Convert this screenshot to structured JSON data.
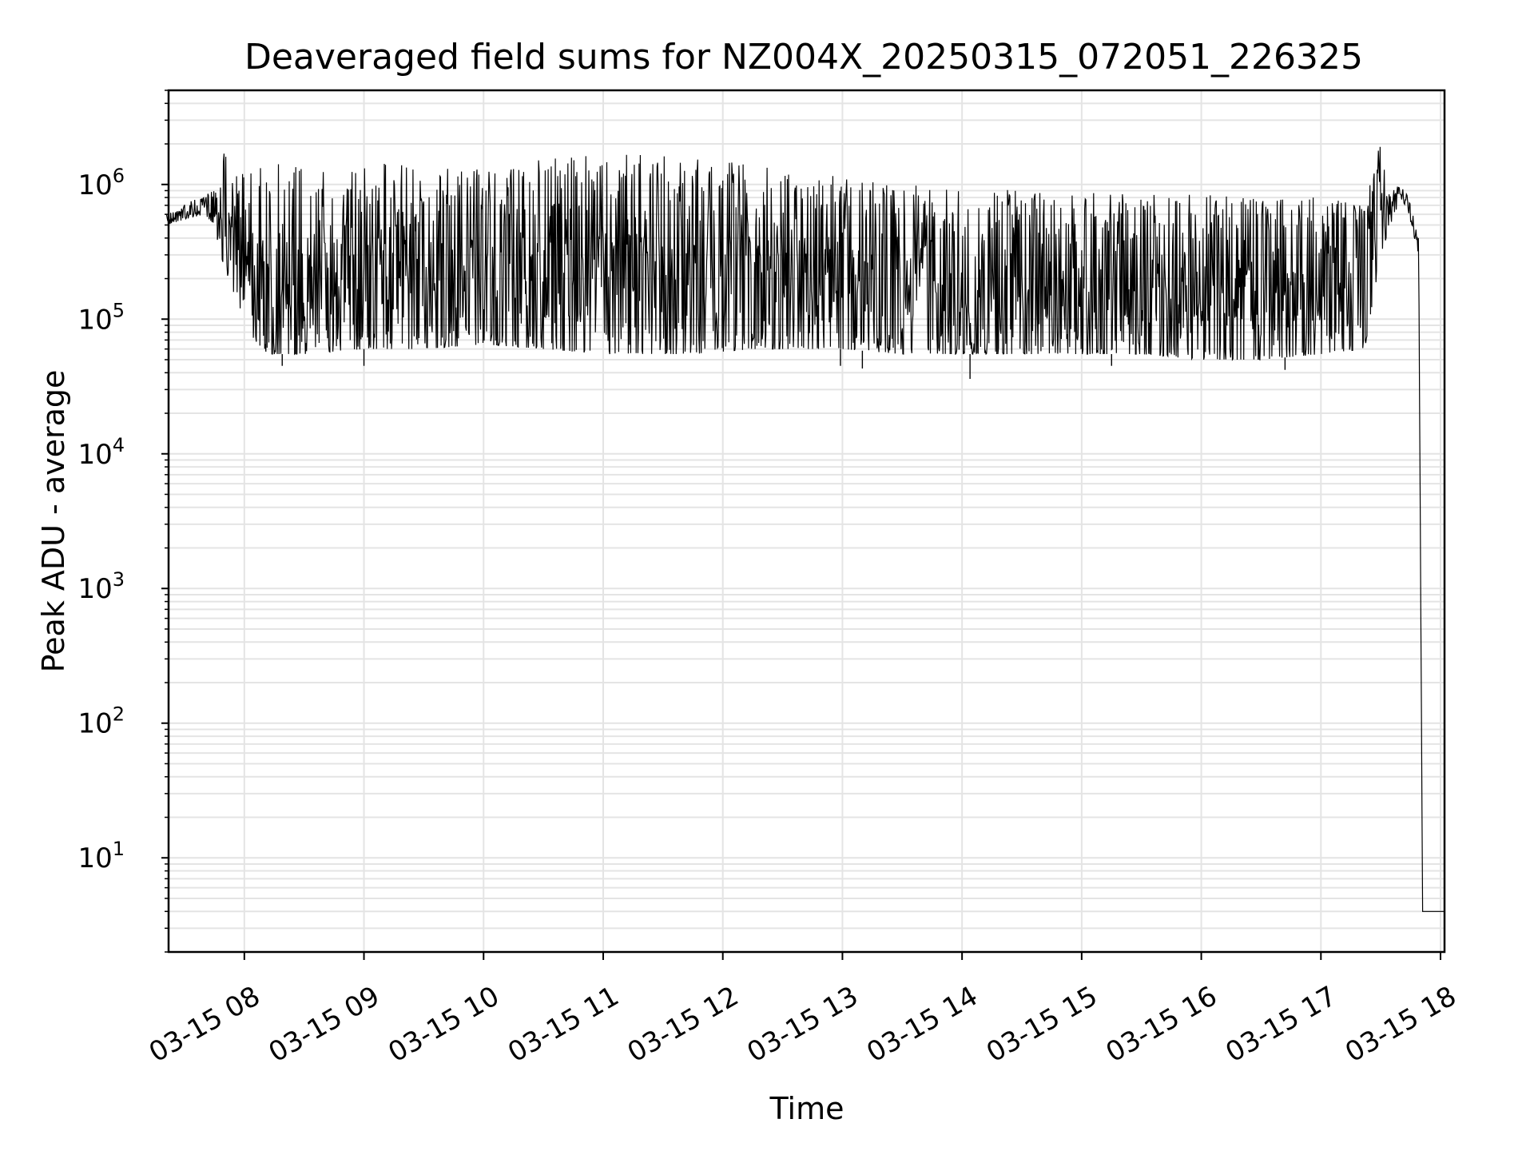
{
  "chart_data": {
    "type": "line",
    "title": "Deaveraged field sums for NZ004X_20250315_072051_226325",
    "xlabel": "Time",
    "ylabel": "Peak ADU - average",
    "yscale": "log",
    "ylim": [
      2,
      5000000
    ],
    "xlim": [
      "2025-03-15 07:22",
      "2025-03-15 18:02"
    ],
    "x_tick_labels": [
      "03-15 08",
      "03-15 09",
      "03-15 10",
      "03-15 11",
      "03-15 12",
      "03-15 13",
      "03-15 14",
      "03-15 15",
      "03-15 16",
      "03-15 17",
      "03-15 18"
    ],
    "x_tick_times": [
      "2025-03-15 08:00",
      "2025-03-15 09:00",
      "2025-03-15 10:00",
      "2025-03-15 11:00",
      "2025-03-15 12:00",
      "2025-03-15 13:00",
      "2025-03-15 14:00",
      "2025-03-15 15:00",
      "2025-03-15 16:00",
      "2025-03-15 17:00",
      "2025-03-15 18:00"
    ],
    "y_tick_labels": [
      {
        "base": "10",
        "exp": "1"
      },
      {
        "base": "10",
        "exp": "2"
      },
      {
        "base": "10",
        "exp": "3"
      },
      {
        "base": "10",
        "exp": "4"
      },
      {
        "base": "10",
        "exp": "5"
      },
      {
        "base": "10",
        "exp": "6"
      }
    ],
    "grid": true,
    "line_color": "#000000",
    "series": [
      {
        "x": [
          "2025-03-15 07:21",
          "2025-03-15 07:30",
          "2025-03-15 07:40",
          "2025-03-15 07:45",
          "2025-03-15 07:48",
          "2025-03-15 07:55",
          "2025-03-15 08:05",
          "2025-03-15 08:12",
          "2025-03-15 08:30",
          "2025-03-15 09:00",
          "2025-03-15 09:30",
          "2025-03-15 10:00",
          "2025-03-15 10:30",
          "2025-03-15 11:00",
          "2025-03-15 11:15",
          "2025-03-15 11:45",
          "2025-03-15 12:15",
          "2025-03-15 12:45",
          "2025-03-15 13:00",
          "2025-03-15 13:30",
          "2025-03-15 14:00",
          "2025-03-15 14:30",
          "2025-03-15 15:00",
          "2025-03-15 15:30",
          "2025-03-15 16:00",
          "2025-03-15 16:30",
          "2025-03-15 17:00",
          "2025-03-15 17:22",
          "2025-03-15 17:29",
          "2025-03-15 17:35",
          "2025-03-15 17:40",
          "2025-03-15 17:44",
          "2025-03-15 17:49",
          "2025-03-15 17:51",
          "2025-03-15 18:02"
        ],
        "y_high": [
          600000,
          750000,
          800000,
          1000000,
          2600000,
          1200000,
          1400000,
          1500000,
          1500000,
          1500000,
          1400000,
          1300000,
          1600000,
          1700000,
          1750000,
          1650000,
          1600000,
          1300000,
          1100000,
          1000000,
          950000,
          900000,
          900000,
          850000,
          850000,
          800000,
          800000,
          700000,
          2100000,
          900000,
          1000000,
          800000,
          400000,
          4,
          4
        ],
        "y_low": [
          500000,
          550000,
          600000,
          500000,
          300000,
          150000,
          70000,
          55000,
          55000,
          60000,
          60000,
          65000,
          60000,
          55000,
          55000,
          55000,
          60000,
          60000,
          60000,
          55000,
          55000,
          55000,
          55000,
          55000,
          50000,
          50000,
          55000,
          60000,
          250000,
          500000,
          800000,
          600000,
          300000,
          4,
          4
        ],
        "y_min_spikes": [
          {
            "x": "2025-03-15 08:19",
            "y": 45000
          },
          {
            "x": "2025-03-15 09:00",
            "y": 45000
          },
          {
            "x": "2025-03-15 12:59",
            "y": 45000
          },
          {
            "x": "2025-03-15 13:10",
            "y": 43000
          },
          {
            "x": "2025-03-15 14:04",
            "y": 36000
          },
          {
            "x": "2025-03-15 15:15",
            "y": 45000
          },
          {
            "x": "2025-03-15 16:42",
            "y": 42000
          }
        ]
      }
    ]
  }
}
